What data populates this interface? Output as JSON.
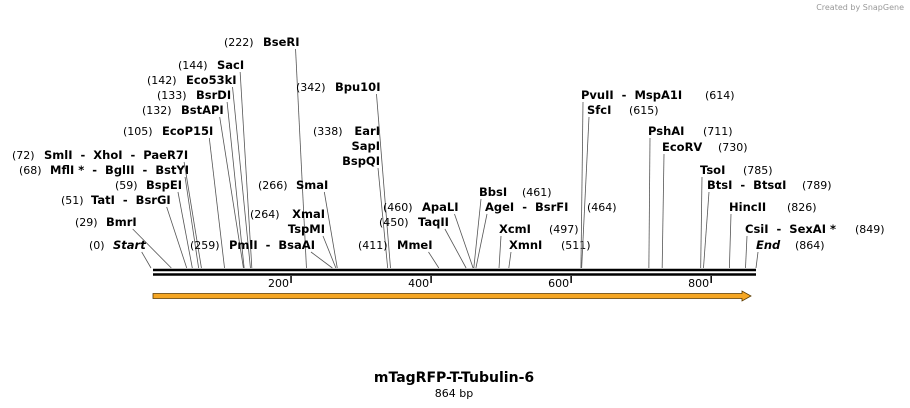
{
  "header": {
    "credit": "Created by SnapGene"
  },
  "map": {
    "title": "mTagRFP-T-Tubulin-6",
    "length_label": "864 bp",
    "scale_ticks": [
      200,
      400,
      600,
      800
    ],
    "sites": [
      {
        "position": {
          "value": 0,
          "label": "(0)"
        },
        "names": [
          "Start"
        ]
      },
      {
        "position": {
          "value": 29,
          "label": "(29)"
        },
        "names": [
          "BmrI"
        ]
      },
      {
        "position": {
          "value": 51,
          "label": "(51)"
        },
        "names": [
          "TatI  -  BsrGI"
        ]
      },
      {
        "position": {
          "value": 59,
          "label": "(59)"
        },
        "names": [
          "BspEI"
        ]
      },
      {
        "position": {
          "value": 68,
          "label": "(68)"
        },
        "names": [
          "MflI *  -  BglII  -  BstYI"
        ]
      },
      {
        "position": {
          "value": 72,
          "label": "(72)"
        },
        "names": [
          "SmlI  -  XhoI  -  PaeR7I"
        ]
      },
      {
        "position": {
          "value": 105,
          "label": "(105)"
        },
        "names": [
          "EcoP15I"
        ]
      },
      {
        "position": {
          "value": 132,
          "label": "(132)"
        },
        "names": [
          "BstAPI"
        ]
      },
      {
        "position": {
          "value": 133,
          "label": "(133)"
        },
        "names": [
          "BsrDI"
        ]
      },
      {
        "position": {
          "value": 142,
          "label": "(142)"
        },
        "names": [
          "Eco53kI"
        ]
      },
      {
        "position": {
          "value": 144,
          "label": "(144)"
        },
        "names": [
          "SacI"
        ]
      },
      {
        "position": {
          "value": 222,
          "label": "(222)"
        },
        "names": [
          "BseRI"
        ]
      },
      {
        "position": {
          "value": 259,
          "label": "(259)"
        },
        "names": [
          "PmlI  -  BsaAI"
        ]
      },
      {
        "position": {
          "value": 264,
          "label": "(264)"
        },
        "names": [
          "XmaI",
          "TspMI"
        ]
      },
      {
        "position": {
          "value": 266,
          "label": "(266)"
        },
        "names": [
          "SmaI"
        ]
      },
      {
        "position": {
          "value": 338,
          "label": "(338)"
        },
        "names": [
          "EarI",
          "SapI",
          "BspQI"
        ]
      },
      {
        "position": {
          "value": 342,
          "label": "(342)"
        },
        "names": [
          "Bpu10I"
        ]
      },
      {
        "position": {
          "value": 411,
          "label": "(411)"
        },
        "names": [
          "MmeI"
        ]
      },
      {
        "position": {
          "value": 450,
          "label": "(450)"
        },
        "names": [
          "TaqII"
        ]
      },
      {
        "position": {
          "value": 460,
          "label": "(460)"
        },
        "names": [
          "ApaLI"
        ]
      },
      {
        "position": {
          "value": 461,
          "label": "(461)"
        },
        "names": [
          "BbsI"
        ]
      },
      {
        "position": {
          "value": 464,
          "label": "(464)"
        },
        "names": [
          "AgeI  -  BsrFI"
        ]
      },
      {
        "position": {
          "value": 497,
          "label": "(497)"
        },
        "names": [
          "XcmI"
        ]
      },
      {
        "position": {
          "value": 511,
          "label": "(511)"
        },
        "names": [
          "XmnI"
        ]
      },
      {
        "position": {
          "value": 614,
          "label": "(614)"
        },
        "names": [
          "PvuII  -  MspA1I"
        ]
      },
      {
        "position": {
          "value": 615,
          "label": "(615)"
        },
        "names": [
          "SfcI"
        ]
      },
      {
        "position": {
          "value": 711,
          "label": "(711)"
        },
        "names": [
          "PshAI"
        ]
      },
      {
        "position": {
          "value": 730,
          "label": "(730)"
        },
        "names": [
          "EcoRV"
        ]
      },
      {
        "position": {
          "value": 785,
          "label": "(785)"
        },
        "names": [
          "TsoI"
        ]
      },
      {
        "position": {
          "value": 789,
          "label": "(789)"
        },
        "names": [
          "BtsI  -  BtsαI"
        ]
      },
      {
        "position": {
          "value": 826,
          "label": "(826)"
        },
        "names": [
          "HincII"
        ]
      },
      {
        "position": {
          "value": 849,
          "label": "(849)"
        },
        "names": [
          "CsiI  -  SexAI *"
        ]
      },
      {
        "position": {
          "value": 864,
          "label": "(864)"
        },
        "names": [
          "End"
        ]
      }
    ]
  }
}
